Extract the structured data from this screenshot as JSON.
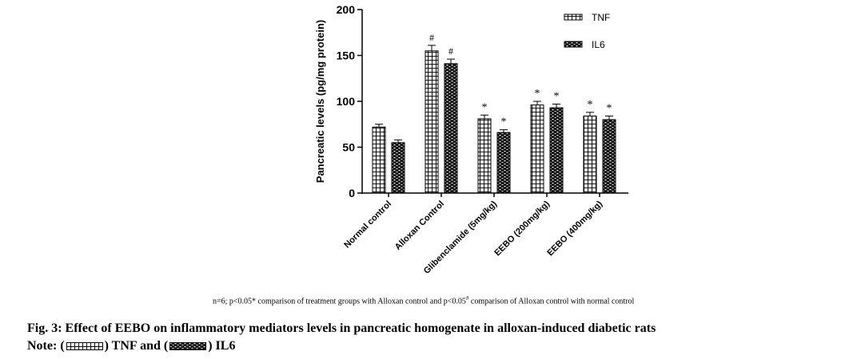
{
  "chart_data": {
    "type": "bar",
    "ylabel": "Pancreatic levels (pg/mg protein)",
    "xlabel": "",
    "ylim": [
      0,
      200
    ],
    "yticks": [
      0,
      50,
      100,
      150,
      200
    ],
    "categories": [
      "Normal control",
      "Alloxan Control",
      "Glibenclamide (5mg/kg)",
      "EEBO (200mg/kg)",
      "EEBO (400mg/kg)"
    ],
    "series": [
      {
        "name": "TNF",
        "values": [
          72,
          155,
          81,
          96,
          84
        ],
        "errors": [
          3,
          6,
          4,
          4,
          4
        ],
        "markers": [
          "",
          "#",
          "*",
          "*",
          "*"
        ]
      },
      {
        "name": "IL6",
        "values": [
          55,
          141,
          66,
          93,
          80
        ],
        "errors": [
          3,
          5,
          3,
          4,
          4
        ],
        "markers": [
          "",
          "#",
          "*",
          "*",
          "*"
        ]
      }
    ],
    "legend_position": "top-right"
  },
  "footnote": {
    "text_a": "n=6; p<0.05* comparison of treatment groups with Alloxan control and p<0.05",
    "superscript": "#",
    "text_b": " comparison of  Alloxan control with normal control"
  },
  "caption": {
    "title": "Fig. 3: Effect of EEBO on inflammatory mediators levels in pancreatic homogenate in alloxan-induced diabetic rats",
    "note_prefix": "Note:  (",
    "note_tnf": ") TNF and (",
    "note_il6": ") IL6"
  }
}
